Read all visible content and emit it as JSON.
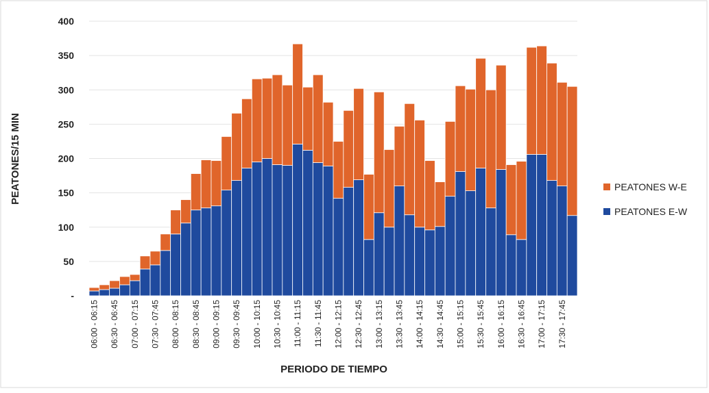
{
  "chart_data": {
    "type": "stacked_bar",
    "xlabel": "PERIODO DE TIEMPO",
    "ylabel": "PEATONES/15 MIN",
    "categories": [
      "06:00 - 06:15",
      null,
      "06:30 - 06:45",
      null,
      "07:00 - 07:15",
      null,
      "07:30 - 07:45",
      null,
      "08:00 - 08:15",
      null,
      "08:30 - 08:45",
      null,
      "09:00 - 09:15",
      null,
      "09:30 - 09:45",
      null,
      "10:00 - 10:15",
      null,
      "10:30 - 10:45",
      null,
      "11:00 - 11:15",
      null,
      "11:30 - 11:45",
      null,
      "12:00 - 12:15",
      null,
      "12:30 - 12:45",
      null,
      "13:00 - 13:15",
      null,
      "13:30 - 13:45",
      null,
      "14:00 - 14:15",
      null,
      "14:30 - 14:45",
      null,
      "15:00 - 15:15",
      null,
      "15:30 - 15:45",
      null,
      "16:00 - 16:15",
      null,
      "16:30 - 16:45",
      null,
      "17:00 - 17:15",
      null,
      "17:30 - 17:45",
      null
    ],
    "series": [
      {
        "name": "PEATONES E-W",
        "color": "#1f4a9e",
        "values": [
          7,
          9,
          11,
          16,
          22,
          39,
          45,
          66,
          90,
          106,
          125,
          128,
          131,
          154,
          168,
          186,
          195,
          200,
          191,
          190,
          221,
          212,
          194,
          189,
          142,
          158,
          169,
          82,
          121,
          100,
          160,
          118,
          100,
          96,
          101,
          145,
          181,
          153,
          186,
          128,
          184,
          89,
          82,
          206,
          206,
          168,
          160,
          117
        ]
      },
      {
        "name": "PEATONES W-E",
        "color": "#e0652b",
        "values": [
          5,
          7,
          11,
          12,
          9,
          19,
          20,
          24,
          35,
          34,
          53,
          70,
          66,
          78,
          98,
          101,
          121,
          117,
          131,
          117,
          146,
          92,
          128,
          93,
          83,
          112,
          133,
          95,
          176,
          113,
          87,
          162,
          156,
          101,
          65,
          109,
          125,
          148,
          160,
          172,
          152,
          102,
          114,
          156,
          158,
          171,
          151,
          188
        ]
      }
    ],
    "ylim": [
      0,
      400
    ],
    "yticks": [
      {
        "value": 0,
        "label": "-"
      },
      50,
      100,
      150,
      200,
      250,
      300,
      350,
      400
    ],
    "grid": true,
    "legend": "right"
  }
}
